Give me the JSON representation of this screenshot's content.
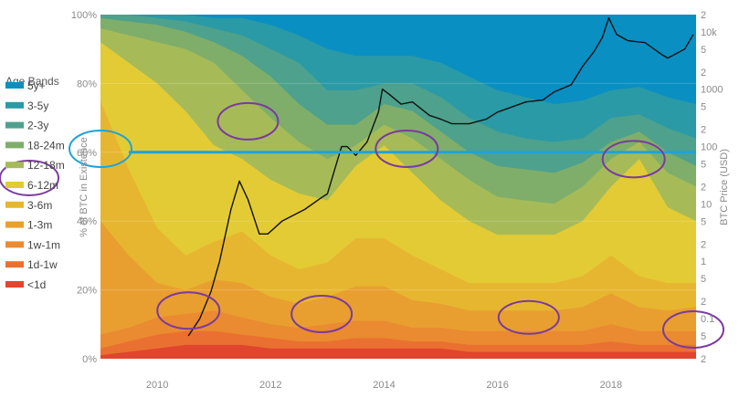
{
  "chart_data": {
    "type": "area",
    "xlabel": "",
    "ylabel": "% of BTC in Existence",
    "y2label": "BTC Price (USD)",
    "xlim": [
      2009.0,
      2019.5
    ],
    "ylim": [
      0,
      100
    ],
    "y2lim": [
      0.02,
      20000
    ],
    "y2scale": "log",
    "x_ticks": [
      "2010",
      "2012",
      "2014",
      "2016",
      "2018"
    ],
    "y_ticks": [
      "0%",
      "20%",
      "40%",
      "60%",
      "80%",
      "100%"
    ],
    "y2_ticks": [
      "2",
      "10k",
      "5",
      "2",
      "1000",
      "5",
      "2",
      "100",
      "5",
      "2",
      "10",
      "5",
      "2",
      "1",
      "5",
      "2",
      "0.1",
      "5",
      "2"
    ],
    "legend": {
      "title": "Age Bands",
      "placement": "left",
      "items": [
        {
          "name": "5y+",
          "color": "#0a8fc2"
        },
        {
          "name": "3-5y",
          "color": "#2a9aa6"
        },
        {
          "name": "2-3y",
          "color": "#4ea18c"
        },
        {
          "name": "18-24m",
          "color": "#7fae6a"
        },
        {
          "name": "12-18m",
          "color": "#a6bb58"
        },
        {
          "name": "6-12m",
          "color": "#e3cb35"
        },
        {
          "name": "3-6m",
          "color": "#e7b630"
        },
        {
          "name": "1-3m",
          "color": "#e89f30"
        },
        {
          "name": "1w-1m",
          "color": "#ea8a31"
        },
        {
          "name": "1d-1w",
          "color": "#ea7031"
        },
        {
          "name": "<1d",
          "color": "#e1452e"
        }
      ]
    },
    "x": [
      2009.0,
      2009.5,
      2010.0,
      2010.5,
      2011.0,
      2011.5,
      2012.0,
      2012.5,
      2013.0,
      2013.5,
      2014.0,
      2014.5,
      2015.0,
      2015.5,
      2016.0,
      2016.5,
      2017.0,
      2017.5,
      2018.0,
      2018.5,
      2019.0,
      2019.5
    ],
    "bands_cumulative_pct": {
      "<1d": [
        1,
        2,
        3,
        4,
        4,
        4,
        3,
        3,
        3,
        3,
        3,
        3,
        3,
        2,
        2,
        2,
        2,
        2,
        2,
        2,
        2,
        2
      ],
      "1d-1w": [
        3,
        5,
        7,
        8,
        8,
        7,
        6,
        5,
        5,
        6,
        6,
        5,
        5,
        4,
        4,
        4,
        4,
        4,
        5,
        4,
        4,
        4
      ],
      "1w-1m": [
        7,
        9,
        12,
        13,
        14,
        12,
        10,
        9,
        10,
        11,
        11,
        9,
        9,
        8,
        8,
        8,
        8,
        8,
        10,
        8,
        8,
        8
      ],
      "1-3m": [
        40,
        30,
        22,
        20,
        23,
        22,
        18,
        16,
        18,
        21,
        21,
        17,
        16,
        14,
        14,
        14,
        14,
        15,
        19,
        15,
        14,
        15
      ],
      "3-6m": [
        75,
        55,
        38,
        30,
        34,
        37,
        30,
        26,
        28,
        35,
        35,
        30,
        26,
        22,
        22,
        22,
        22,
        24,
        30,
        24,
        22,
        22
      ],
      "6-12m": [
        92,
        86,
        80,
        72,
        62,
        58,
        52,
        48,
        46,
        56,
        62,
        54,
        46,
        40,
        36,
        36,
        36,
        40,
        50,
        58,
        44,
        40
      ],
      "12-18m": [
        96,
        94,
        92,
        90,
        86,
        78,
        70,
        63,
        58,
        62,
        68,
        64,
        58,
        52,
        47,
        46,
        45,
        50,
        58,
        63,
        54,
        50
      ],
      "18-24m": [
        99,
        98,
        97,
        95,
        92,
        88,
        82,
        74,
        68,
        68,
        74,
        72,
        66,
        60,
        56,
        55,
        54,
        57,
        63,
        66,
        60,
        56
      ],
      "2-3y": [
        100,
        100,
        99,
        98,
        96,
        94,
        90,
        86,
        78,
        78,
        80,
        80,
        76,
        70,
        66,
        64,
        63,
        64,
        70,
        71,
        67,
        64
      ],
      "3-5y": [
        100,
        100,
        100,
        100,
        99,
        99,
        97,
        94,
        90,
        88,
        88,
        88,
        86,
        82,
        78,
        76,
        74,
        75,
        78,
        79,
        76,
        74
      ],
      "5y+": [
        100,
        100,
        100,
        100,
        100,
        100,
        100,
        100,
        100,
        100,
        100,
        100,
        100,
        100,
        100,
        100,
        100,
        100,
        100,
        100,
        100,
        100
      ]
    },
    "price": {
      "name": "BTC Price",
      "x": [
        2010.55,
        2010.75,
        2010.95,
        2011.1,
        2011.3,
        2011.45,
        2011.6,
        2011.8,
        2011.95,
        2012.2,
        2012.6,
        2012.9,
        2013.0,
        2013.25,
        2013.35,
        2013.5,
        2013.7,
        2013.9,
        2013.97,
        2014.1,
        2014.3,
        2014.5,
        2014.8,
        2015.0,
        2015.2,
        2015.5,
        2015.8,
        2016.0,
        2016.5,
        2016.8,
        2017.0,
        2017.3,
        2017.5,
        2017.7,
        2017.85,
        2017.96,
        2018.1,
        2018.3,
        2018.6,
        2018.9,
        2019.0,
        2019.3,
        2019.45
      ],
      "values": [
        0.05,
        0.1,
        0.3,
        1,
        8,
        25,
        12,
        3,
        3,
        5,
        8,
        13,
        15,
        100,
        100,
        70,
        120,
        400,
        1000,
        800,
        550,
        600,
        350,
        300,
        250,
        250,
        300,
        400,
        600,
        650,
        900,
        1200,
        2500,
        4500,
        8000,
        17500,
        9000,
        7000,
        6500,
        4000,
        3500,
        5000,
        9000
      ]
    },
    "reference_line": {
      "y": 60,
      "color": "#1fa3d9"
    },
    "annotations": [
      {
        "shape": "ellipse",
        "x": 2011.6,
        "y": 69,
        "color": "#7b3a9e"
      },
      {
        "shape": "ellipse",
        "x": 2014.4,
        "y": 61,
        "color": "#7b3a9e"
      },
      {
        "shape": "ellipse",
        "x": 2018.4,
        "y": 58,
        "color": "#7b3a9e"
      },
      {
        "shape": "ellipse",
        "x": 2010.55,
        "y": 14,
        "color": "#7b3a9e"
      },
      {
        "shape": "ellipse",
        "x": 2012.9,
        "y": 13,
        "color": "#7b3a9e"
      },
      {
        "shape": "ellipse",
        "x": 2016.55,
        "y": 12,
        "color": "#7b3a9e"
      },
      {
        "shape": "ellipse",
        "x": 2009.0,
        "y": 61,
        "color": "#1fa3d9"
      }
    ]
  }
}
